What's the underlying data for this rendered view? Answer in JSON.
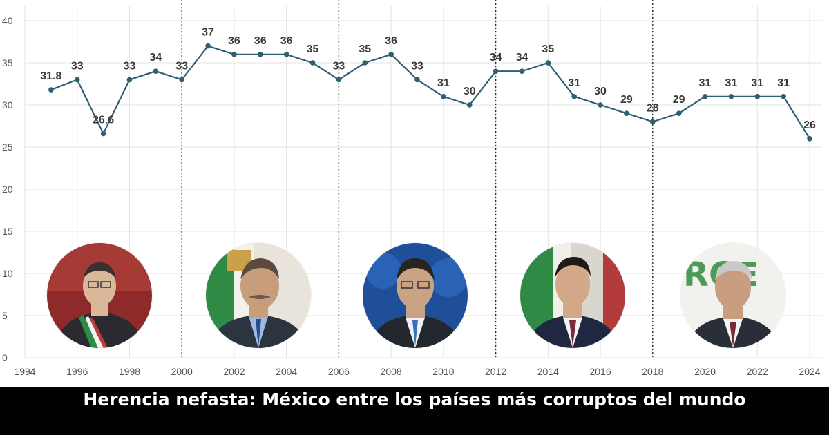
{
  "caption": "Herencia nefasta: México entre los países más corruptos del mundo",
  "chart_data": {
    "type": "line",
    "title": "",
    "xlabel": "",
    "ylabel": "",
    "x": [
      1995,
      1996,
      1997,
      1998,
      1999,
      2000,
      2001,
      2002,
      2003,
      2004,
      2005,
      2006,
      2007,
      2008,
      2009,
      2010,
      2011,
      2012,
      2013,
      2014,
      2015,
      2016,
      2017,
      2018,
      2019,
      2020,
      2021,
      2022,
      2023,
      2024
    ],
    "values": [
      31.8,
      33,
      26.6,
      33,
      34,
      33,
      37,
      36,
      36,
      36,
      35,
      33,
      35,
      36,
      33,
      31,
      30,
      34,
      34,
      35,
      31,
      30,
      29,
      28,
      29,
      31,
      31,
      31,
      31,
      26
    ],
    "data_labels": [
      "31.8",
      "33",
      "26.6",
      "33",
      "34",
      "33",
      "37",
      "36",
      "36",
      "36",
      "35",
      "33",
      "35",
      "36",
      "33",
      "31",
      "30",
      "34",
      "34",
      "35",
      "31",
      "30",
      "29",
      "28",
      "29",
      "31",
      "31",
      "31",
      "31",
      "26"
    ],
    "x_ticks": [
      "1994",
      "1996",
      "1998",
      "2000",
      "2002",
      "2004",
      "2006",
      "2008",
      "2010",
      "2012",
      "2014",
      "2016",
      "2018",
      "2020",
      "2022",
      "2024"
    ],
    "y_ticks": [
      "0",
      "5",
      "10",
      "15",
      "20",
      "25",
      "30",
      "35",
      "40"
    ],
    "xlim": [
      1994,
      2024
    ],
    "ylim": [
      0,
      40
    ],
    "grid": true,
    "term_dividers": [
      2000,
      2006,
      2012,
      2018
    ],
    "line_color": "#2e5f73",
    "portraits": [
      "portrait-president-1",
      "portrait-president-2",
      "portrait-president-3",
      "portrait-president-4",
      "portrait-president-5"
    ]
  }
}
